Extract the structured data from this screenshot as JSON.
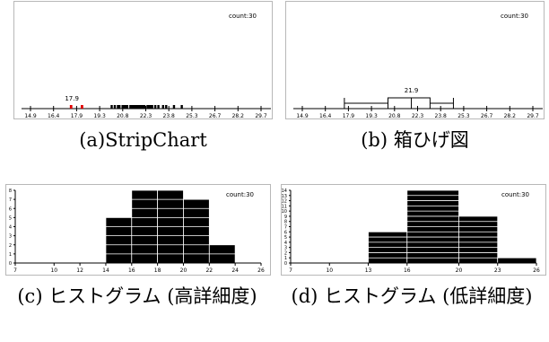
{
  "colors": {
    "frame": "#b8b8b8",
    "mark": "#000000",
    "highlight": "#e00000",
    "background": "#ffffff"
  },
  "chart_data": [
    {
      "type": "scatter",
      "subtype": "strip",
      "count_label": "count:30",
      "annotation": "17.9",
      "xlim": [
        14.9,
        29.7
      ],
      "ticks": [
        "14.9",
        "16.4",
        "17.9",
        "19.3",
        "20.8",
        "22.3",
        "23.8",
        "25.3",
        "26.7",
        "28.2",
        "29.7"
      ],
      "highlighted_values": [
        17.5,
        18.2
      ],
      "values": [
        20.1,
        20.3,
        20.5,
        20.6,
        20.8,
        20.9,
        21.0,
        21.1,
        21.3,
        21.4,
        21.5,
        21.6,
        21.7,
        21.8,
        21.9,
        22.0,
        22.1,
        22.2,
        22.4,
        22.5,
        22.6,
        22.7,
        22.9,
        23.1,
        23.4,
        23.6,
        24.1,
        24.6
      ],
      "caption": "(a)StripChart"
    },
    {
      "type": "box",
      "count_label": "count:30",
      "annotation": "21.9",
      "xlim": [
        14.9,
        29.7
      ],
      "ticks": [
        "14.9",
        "16.4",
        "17.9",
        "19.3",
        "20.8",
        "22.3",
        "23.8",
        "25.3",
        "26.7",
        "28.2",
        "29.7"
      ],
      "box": {
        "whisker_low": 17.6,
        "q1": 20.4,
        "median": 21.9,
        "q3": 23.1,
        "whisker_high": 24.6
      },
      "caption": "(b) 箱ひげ図"
    },
    {
      "type": "bar",
      "subtype": "histogram",
      "count_label": "count:30",
      "xlim": [
        7,
        26
      ],
      "ylim": [
        0,
        8
      ],
      "x_ticks": [
        "7",
        "10",
        "12",
        "14",
        "16",
        "18",
        "20",
        "22",
        "24",
        "26"
      ],
      "y_ticks": [
        "0",
        "1",
        "2",
        "3",
        "4",
        "5",
        "6",
        "7",
        "8"
      ],
      "bins": [
        {
          "from": 14,
          "to": 16,
          "count": 5
        },
        {
          "from": 16,
          "to": 18,
          "count": 8
        },
        {
          "from": 18,
          "to": 20,
          "count": 8
        },
        {
          "from": 20,
          "to": 22,
          "count": 7
        },
        {
          "from": 22,
          "to": 24,
          "count": 2
        }
      ],
      "caption": "(c) ヒストグラム (高詳細度)"
    },
    {
      "type": "bar",
      "subtype": "histogram",
      "count_label": "count:30",
      "xlim": [
        7,
        26
      ],
      "ylim": [
        0,
        14
      ],
      "x_ticks": [
        "7",
        "10",
        "13",
        "16",
        "20",
        "23",
        "26"
      ],
      "y_ticks": [
        "0",
        "1",
        "2",
        "3",
        "4",
        "5",
        "6",
        "7",
        "8",
        "9",
        "10",
        "11",
        "12",
        "13",
        "14"
      ],
      "bins": [
        {
          "from": 13,
          "to": 16,
          "count": 6
        },
        {
          "from": 16,
          "to": 20,
          "count": 14
        },
        {
          "from": 20,
          "to": 23,
          "count": 9
        },
        {
          "from": 23,
          "to": 26,
          "count": 1
        }
      ],
      "caption": "(d) ヒストグラム (低詳細度)"
    }
  ]
}
